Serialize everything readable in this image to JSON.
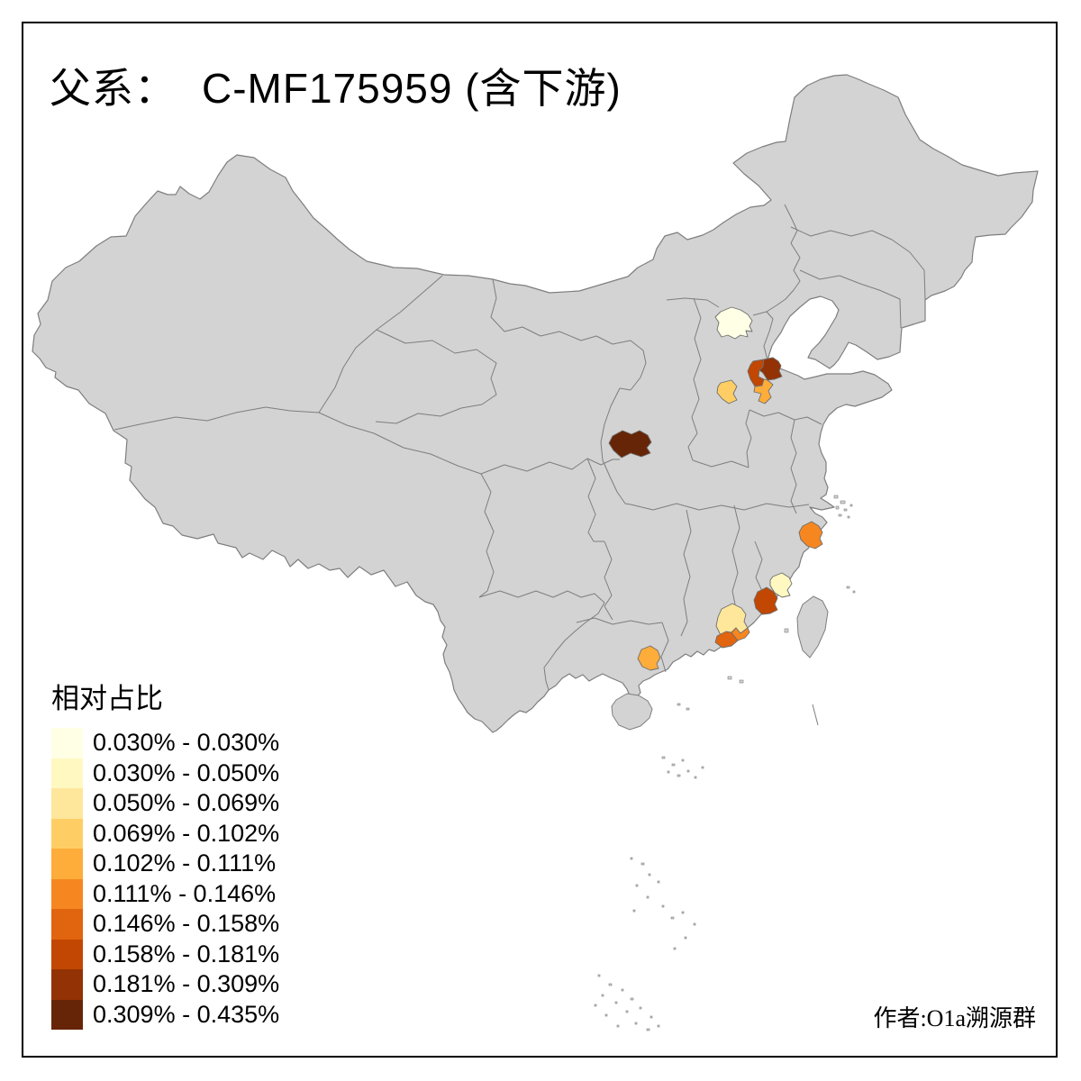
{
  "title": {
    "prefix": "父系：",
    "main": "C-MF175959 (含下游)"
  },
  "legend": {
    "title": "相对占比",
    "classes": [
      {
        "label": "0.030% - 0.030%",
        "color": "#FFFFE5"
      },
      {
        "label": "0.030% - 0.050%",
        "color": "#FFF8C1"
      },
      {
        "label": "0.050% - 0.069%",
        "color": "#FEE79B"
      },
      {
        "label": "0.069% - 0.102%",
        "color": "#FECE65"
      },
      {
        "label": "0.102% - 0.111%",
        "color": "#FEAC3A"
      },
      {
        "label": "0.111% - 0.146%",
        "color": "#F68720"
      },
      {
        "label": "0.146% - 0.158%",
        "color": "#E1640E"
      },
      {
        "label": "0.158% - 0.181%",
        "color": "#C14702"
      },
      {
        "label": "0.181% - 0.309%",
        "color": "#933204"
      },
      {
        "label": "0.309% - 0.435%",
        "color": "#662506"
      }
    ]
  },
  "attribution": "作者:O1a溯源群",
  "map": {
    "colors": {
      "sea": "#FFFFFF",
      "land": "#D3D3D3",
      "boundary": "#7E7E7E",
      "frame": "#000000"
    },
    "highlighted_regions": [
      {
        "location": "beijing-area",
        "class_index": 0
      },
      {
        "location": "nw-shandong-inland",
        "class_index": 7
      },
      {
        "location": "nw-shandong-coastal",
        "class_index": 8
      },
      {
        "location": "central-shandong",
        "class_index": 4
      },
      {
        "location": "south-hebei",
        "class_index": 3
      },
      {
        "location": "southwest-shanxi",
        "class_index": 9
      },
      {
        "location": "coastal-zhejiang",
        "class_index": 5
      },
      {
        "location": "coastal-fujian-north",
        "class_index": 1
      },
      {
        "location": "coastal-fujian-south",
        "class_index": 7
      },
      {
        "location": "east-guangdong-inland",
        "class_index": 2
      },
      {
        "location": "east-guangdong-chaoshan",
        "class_index": 5
      },
      {
        "location": "east-guangdong-coastal",
        "class_index": 6
      },
      {
        "location": "southeast-guangxi",
        "class_index": 4
      }
    ]
  }
}
